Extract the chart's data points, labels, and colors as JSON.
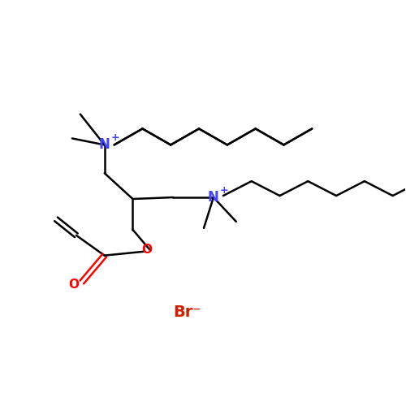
{
  "background_color": "#ffffff",
  "bond_color": "#000000",
  "nitrogen_color": "#4444ff",
  "oxygen_color": "#ff0000",
  "bromide_color": "#cc2200",
  "line_width": 1.8,
  "figsize": [
    5.0,
    5.0
  ],
  "dpi": 100,
  "br_label": "Br",
  "br_sup": "⁻",
  "N_label": "N",
  "N_sup": "+"
}
